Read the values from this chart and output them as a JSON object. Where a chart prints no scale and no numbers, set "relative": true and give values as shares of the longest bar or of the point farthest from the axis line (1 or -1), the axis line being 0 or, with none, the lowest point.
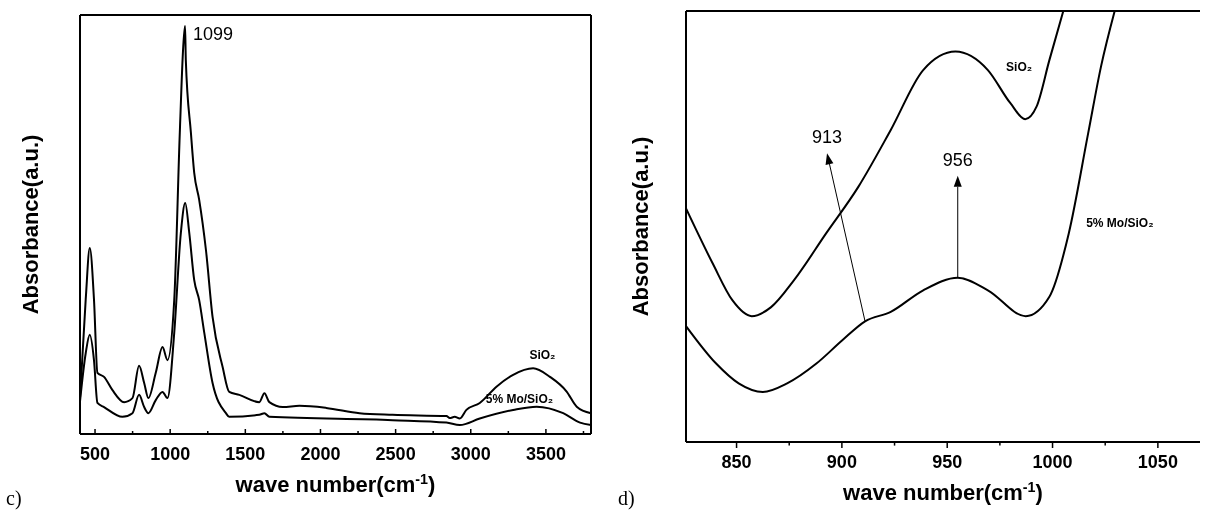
{
  "chart_data": [
    {
      "type": "line",
      "relative": true,
      "xlabel": "wave number(cm$^{-1}$)",
      "ylabel": "Absorbance(a.u.)",
      "xlim": [
        400,
        3800
      ],
      "xticks": [
        500,
        {
          "value": 750,
          "label": null
        },
        1000,
        {
          "value": 1250,
          "label": null
        },
        1500,
        {
          "value": 1750,
          "label": null
        },
        2000,
        {
          "value": 2250,
          "label": null
        },
        2500,
        {
          "value": 2750,
          "label": null
        },
        3000,
        {
          "value": 3250,
          "label": null
        },
        3500,
        {
          "value": 3750,
          "label": null
        }
      ],
      "tick_labels": "x",
      "annotations": [
        {
          "text": "1099",
          "x": 1099,
          "y": 1
        },
        "c)"
      ],
      "series": [
        {
          "name": "SiO₂",
          "color": "#000000",
          "x": [
            400,
            438,
            465,
            493,
            516,
            560,
            615,
            693,
            749,
            793,
            827,
            855,
            904,
            949,
            982,
            1027,
            1064,
            1087,
            1099,
            1104,
            1138,
            1160,
            1193,
            1238,
            1282,
            1349,
            1393,
            1460,
            1593,
            1627,
            1660,
            1749,
            1860,
            2038,
            2260,
            2480,
            2838,
            2860,
            2893,
            2927,
            2971,
            3060,
            3171,
            3282,
            3415,
            3527,
            3638,
            3705,
            3800
          ],
          "values": [
            0.088,
            0.33,
            0.456,
            0.33,
            0.15,
            0.14,
            0.108,
            0.078,
            0.088,
            0.167,
            0.125,
            0.088,
            0.15,
            0.213,
            0.181,
            0.328,
            0.738,
            0.95,
            1,
            0.917,
            0.738,
            0.64,
            0.574,
            0.451,
            0.287,
            0.164,
            0.103,
            0.096,
            0.078,
            0.1,
            0.078,
            0.066,
            0.069,
            0.064,
            0.051,
            0.047,
            0.044,
            0.039,
            0.042,
            0.038,
            0.059,
            0.076,
            0.116,
            0.145,
            0.161,
            0.14,
            0.104,
            0.067,
            0.051
          ]
        },
        {
          "name": "5% Mo/SiO₂",
          "color": "#000000",
          "x": [
            400,
            438,
            465,
            493,
            516,
            560,
            682,
            749,
            793,
            827,
            855,
            904,
            949,
            982,
            1027,
            1071,
            1100,
            1127,
            1160,
            1193,
            1227,
            1282,
            1371,
            1393,
            1593,
            1627,
            1660,
            2480,
            2838,
            2927,
            3060,
            3282,
            3438,
            3615,
            3727,
            3800
          ],
          "values": [
            0.08,
            0.198,
            0.243,
            0.181,
            0.076,
            0.066,
            0.042,
            0.051,
            0.096,
            0.066,
            0.051,
            0.083,
            0.103,
            0.088,
            0.248,
            0.493,
            0.566,
            0.493,
            0.377,
            0.328,
            0.248,
            0.125,
            0.051,
            0.042,
            0.047,
            0.051,
            0.042,
            0.034,
            0.028,
            0.022,
            0.038,
            0.059,
            0.067,
            0.051,
            0.028,
            0.022
          ]
        }
      ]
    },
    {
      "type": "line",
      "relative": true,
      "xlabel": "wave number(cm$^{-1}$)",
      "ylabel": "Absorbance(a.u.)",
      "xlim": [
        826,
        1070
      ],
      "xticks": [
        850,
        {
          "value": 875,
          "label": null
        },
        900,
        {
          "value": 925,
          "label": null
        },
        950,
        {
          "value": 975,
          "label": null
        },
        1000,
        {
          "value": 1025,
          "label": null
        },
        1050
      ],
      "tick_labels": "x",
      "annotations": [
        {
          "text": "913",
          "x": 911,
          "y": 0.28
        },
        {
          "text": "956",
          "x": 955,
          "y": 0.381
        },
        "d)"
      ],
      "series": [
        {
          "name": "SiO₂",
          "color": "#000000",
          "x": [
            826,
            838.7,
            848,
            857.2,
            866.4,
            877.2,
            892.5,
            907.8,
            923.2,
            938.6,
            953.9,
            969.3,
            980,
            987,
            992.4,
            998.5,
            1005.1
          ],
          "values": [
            0.542,
            0.414,
            0.329,
            0.292,
            0.313,
            0.375,
            0.484,
            0.592,
            0.724,
            0.863,
            0.906,
            0.863,
            0.786,
            0.749,
            0.778,
            0.886,
            1
          ]
        },
        {
          "name": "5% Mo/SiO₂",
          "color": "#000000",
          "x": [
            826,
            840.3,
            851,
            862.5,
            874,
            887.9,
            900.2,
            911,
            923.2,
            938.6,
            955,
            969.3,
            987.3,
            998.5,
            1007.7,
            1016.9,
            1023,
            1029.5
          ],
          "values": [
            0.269,
            0.182,
            0.136,
            0.116,
            0.136,
            0.182,
            0.236,
            0.28,
            0.302,
            0.352,
            0.381,
            0.352,
            0.292,
            0.337,
            0.484,
            0.716,
            0.871,
            1
          ]
        }
      ]
    }
  ]
}
